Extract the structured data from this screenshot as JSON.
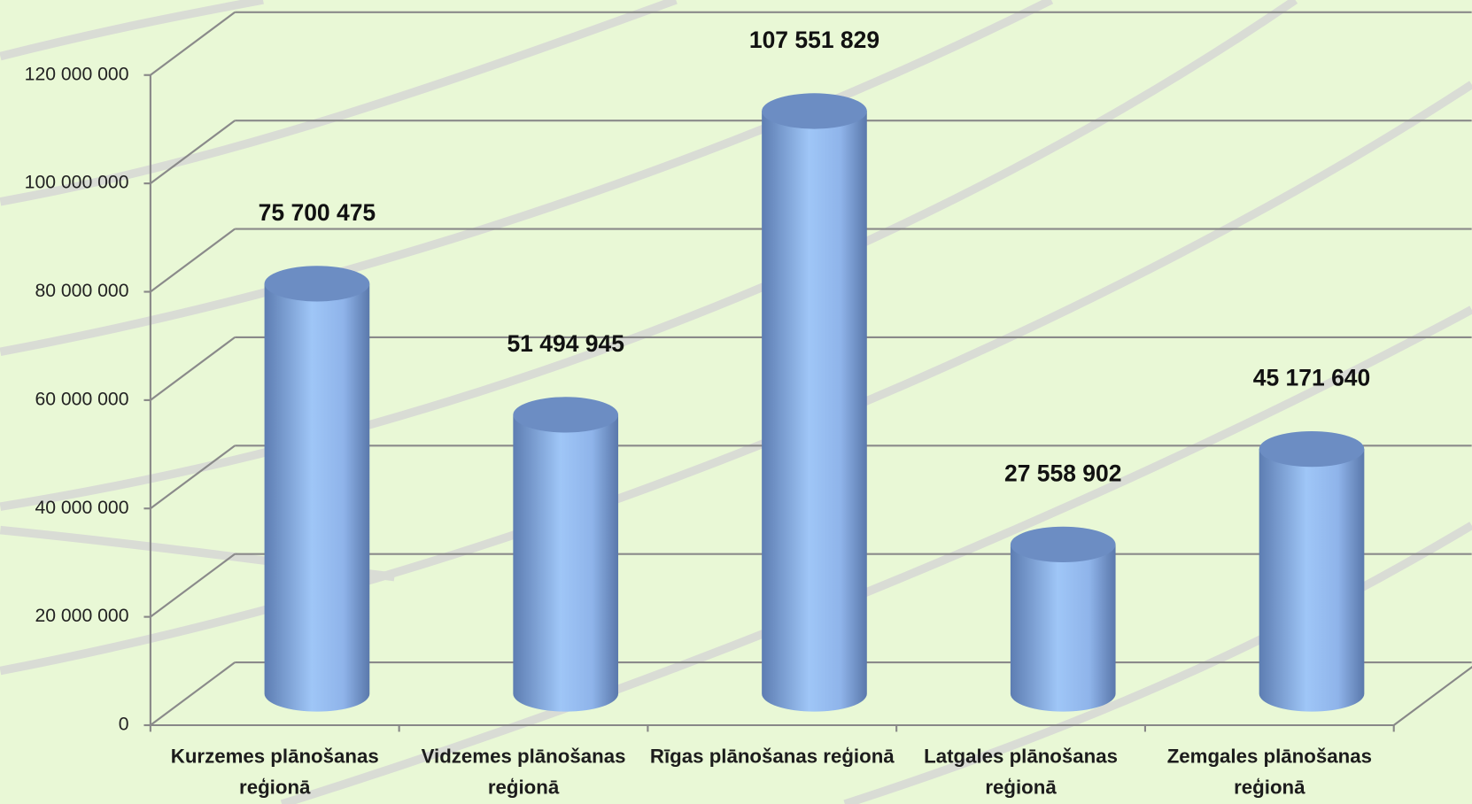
{
  "chart_data": {
    "type": "bar3d",
    "categories": [
      "Kurzemes plānošanas reģionā",
      "Vidzemes plānošanas reģionā",
      "Rīgas plānošanas reģionā",
      "Latgales plānošanas reģionā",
      "Zemgales plānošanas reģionā"
    ],
    "values": [
      75700475,
      51494945,
      107551829,
      27558902,
      45171640
    ],
    "value_labels": [
      "75 700 475",
      "51 494 945",
      "107 551 829",
      "27 558 902",
      "45 171 640"
    ],
    "color": "#8fb4ea",
    "ylim": [
      0,
      120000000
    ],
    "yticks": [
      0,
      {
        "value": 20000000,
        "label": "20 000 000"
      },
      {
        "value": 40000000,
        "label": "40 000 000"
      },
      {
        "value": 60000000,
        "label": "60 000 000"
      },
      {
        "value": 80000000,
        "label": "80 000 000"
      },
      {
        "value": 100000000,
        "label": "100 000 000"
      },
      {
        "value": 120000000,
        "label": "120 000 000"
      }
    ],
    "grid": true
  }
}
